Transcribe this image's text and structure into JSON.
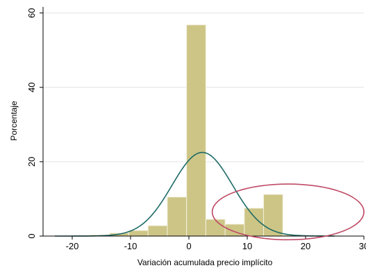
{
  "chart_data": {
    "type": "bar",
    "xlabel": "Variación acumulada precio implícito",
    "ylabel": "Porcentaje",
    "xlim": [
      -25,
      30
    ],
    "ylim": [
      0,
      62
    ],
    "xticks": [
      -20,
      -10,
      0,
      10,
      20,
      30
    ],
    "yticks": [
      0,
      20,
      40,
      60
    ],
    "grid": "horizontal",
    "bin_width": 3.3,
    "bins": [
      {
        "start": -20.2,
        "value": 0.1
      },
      {
        "start": -16.9,
        "value": 0.3
      },
      {
        "start": -13.6,
        "value": 0.8
      },
      {
        "start": -10.3,
        "value": 1.5
      },
      {
        "start": -7.0,
        "value": 2.8
      },
      {
        "start": -3.7,
        "value": 10.5
      },
      {
        "start": -0.4,
        "value": 56.8
      },
      {
        "start": 2.9,
        "value": 4.5
      },
      {
        "start": 6.2,
        "value": 3.2
      },
      {
        "start": 9.5,
        "value": 7.5
      },
      {
        "start": 12.8,
        "value": 11.2
      },
      {
        "start": 16.1,
        "value": 0.3
      },
      {
        "start": 19.4,
        "value": 0.1
      },
      {
        "start": 22.7,
        "value": 0.1
      }
    ],
    "density_curve": {
      "mean": 2.3,
      "sd": 5.2,
      "peak": 22.5,
      "x_range": [
        -23,
        25
      ]
    },
    "annotation": {
      "shape": "ellipse",
      "center": [
        17,
        6.5
      ],
      "radius_x": 13,
      "radius_y": 7.5
    }
  },
  "colors": {
    "bar_fill": "#cdc586",
    "bar_stroke": "#f3f0dc",
    "curve": "#1e6a66",
    "grid": "#e4e4e4",
    "axis": "#000000",
    "ellipse": "#bf4a66"
  }
}
